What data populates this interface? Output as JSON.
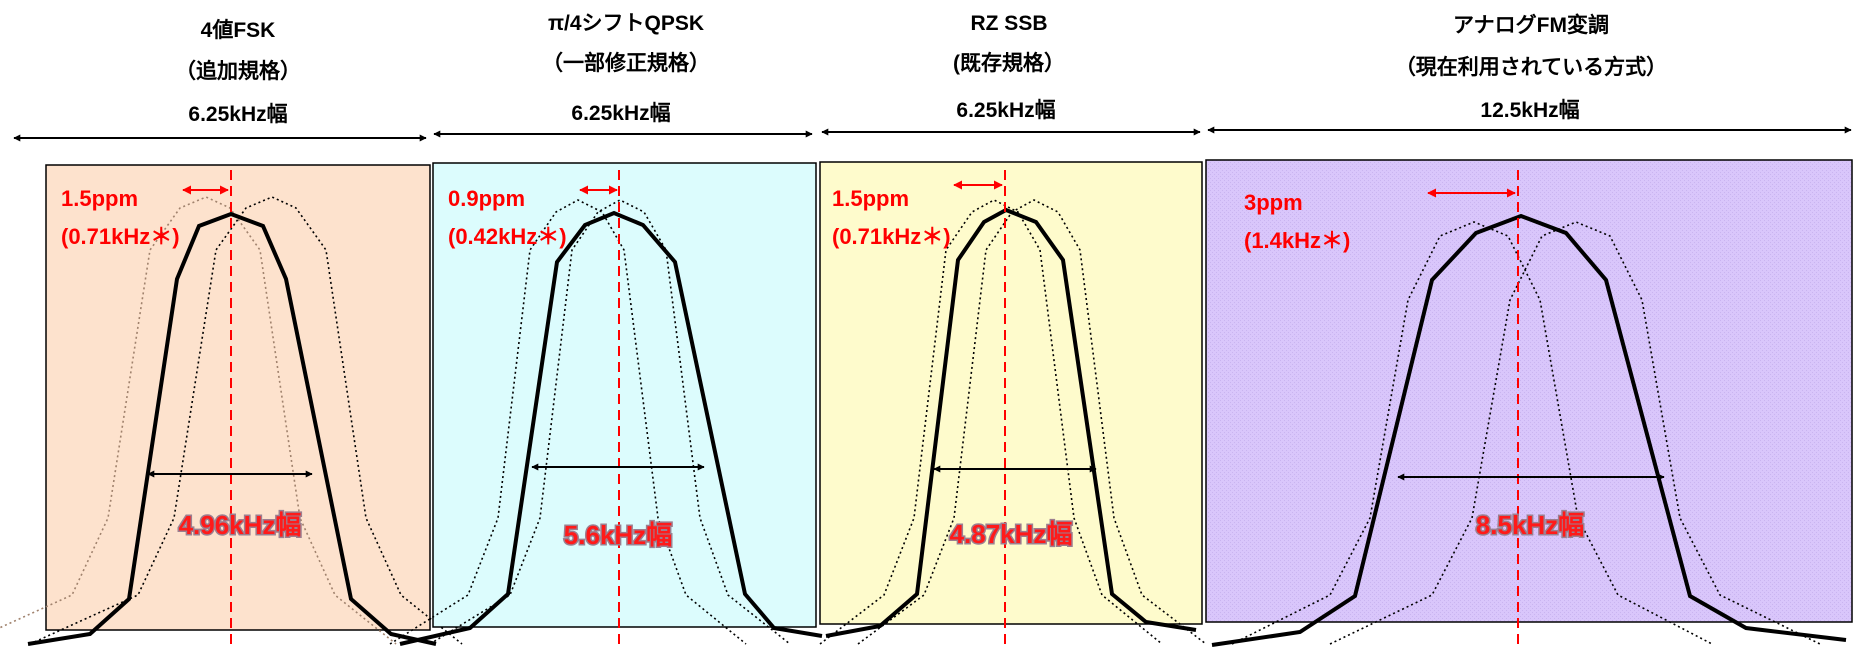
{
  "colors": {
    "panel_fsk": "#fde2cd",
    "panel_qpsk": "#dcfcfd",
    "panel_ssb": "#fefbcc",
    "panel_fm": "#d9c6fb",
    "accent_red": "#ff0000",
    "curve": "#000000"
  },
  "panels": [
    {
      "id": "fsk",
      "title_line1": "4値FSK",
      "title_line2": "（追加規格）",
      "bandwidth": "6.25kHz幅",
      "drift_ppm": "1.5ppm",
      "drift_khz": "(0.71kHz＊)",
      "occupied_bw": "4.96kHz幅"
    },
    {
      "id": "qpsk",
      "title_line1": "π/4シフトQPSK",
      "title_line2": "（一部修正規格）",
      "bandwidth": "6.25kHz幅",
      "drift_ppm": "0.9ppm",
      "drift_khz": "(0.42kHz＊)",
      "occupied_bw": "5.6kHz幅"
    },
    {
      "id": "ssb",
      "title_line1": "RZ SSB",
      "title_line2": "(既存規格）",
      "bandwidth": "6.25kHz幅",
      "drift_ppm": "1.5ppm",
      "drift_khz": "(0.71kHz＊)",
      "occupied_bw": "4.87kHz幅"
    },
    {
      "id": "fm",
      "title_line1": "アナログFM変調",
      "title_line2": "（現在利用されている方式）",
      "bandwidth": "12.5kHz幅",
      "drift_ppm": "3ppm",
      "drift_khz": "(1.4kHz＊)",
      "occupied_bw": "8.5kHz幅"
    }
  ]
}
